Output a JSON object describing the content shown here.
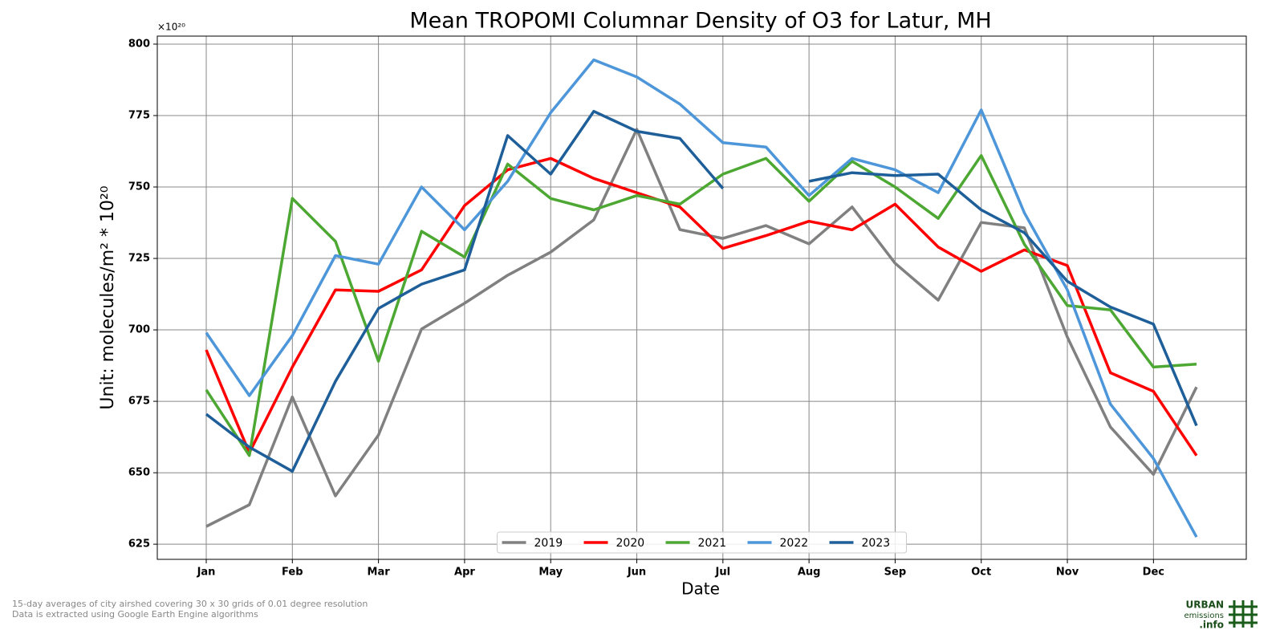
{
  "chart_data": {
    "type": "line",
    "title": "Mean TROPOMI Columnar Density of O3 for Latur, MH",
    "x_label": "Date",
    "y_label": "Unit: molecules/m² * 10²⁰",
    "y_offset_label": "×10²⁰",
    "footnotes": [
      "15-day averages of city airshed covering 30 x 30 grids of 0.01 degree resolution",
      "Data is extracted using Google Earth Engine algorithms"
    ],
    "logo": [
      "URBAN",
      "emissions",
      ".info"
    ],
    "categories": [
      "Jan",
      null,
      "Feb",
      null,
      "Mar",
      null,
      "Apr",
      null,
      "May",
      null,
      "Jun",
      null,
      "Jul",
      null,
      "Aug",
      null,
      "Sep",
      null,
      "Oct",
      null,
      "Nov",
      null,
      "Dec",
      null
    ],
    "ylim": [
      619.7,
      802.8
    ],
    "yticks": [
      625,
      650,
      675,
      700,
      725,
      750,
      775,
      800
    ],
    "grid": true,
    "legend": "lower center",
    "series": [
      {
        "name": "2019",
        "color": "#808080",
        "values": [
          631.2,
          638.8,
          676.5,
          641.9,
          663.2,
          700.3,
          709.3,
          719.1,
          727.2,
          738.5,
          770.2,
          735.1,
          732.0,
          736.5,
          730.1,
          743.0,
          723.3,
          710.4,
          737.6,
          735.7,
          697.5,
          666.0,
          649.4,
          680.0
        ]
      },
      {
        "name": "2020",
        "color": "#ff0000",
        "values": [
          693.0,
          657.0,
          687.0,
          714.0,
          713.5,
          721.0,
          743.5,
          756.0,
          760.0,
          753.0,
          748.0,
          743.0,
          728.5,
          733.0,
          738.0,
          735.0,
          744.0,
          729.0,
          720.5,
          728.0,
          722.5,
          685.0,
          678.5,
          656.0
        ]
      },
      {
        "name": "2021",
        "color": "#4da833",
        "values": [
          679.0,
          656.0,
          746.0,
          731.0,
          689.0,
          734.5,
          725.5,
          758.0,
          746.0,
          742.0,
          747.0,
          744.0,
          754.5,
          760.0,
          745.0,
          759.0,
          750.0,
          739.0,
          761.0,
          730.0,
          708.5,
          707.0,
          687.0,
          688.0
        ]
      },
      {
        "name": "2022",
        "color": "#4d96d9",
        "values": [
          699.0,
          677.0,
          698.0,
          726.0,
          723.0,
          750.0,
          735.0,
          752.0,
          776.0,
          794.5,
          788.5,
          779.0,
          765.5,
          764.0,
          747.0,
          760.0,
          756.0,
          748.0,
          777.0,
          741.0,
          714.0,
          674.0,
          655.0,
          627.5
        ]
      },
      {
        "name": "2023",
        "color": "#1f5f99",
        "values": [
          670.5,
          659.0,
          650.5,
          682.0,
          707.5,
          716.0,
          721.0,
          768.0,
          754.5,
          776.5,
          769.5,
          767.0,
          749.5,
          null,
          752.0,
          755.0,
          754.0,
          754.5,
          742.0,
          734.0,
          717.0,
          708.0,
          702.0,
          666.5
        ]
      }
    ]
  }
}
